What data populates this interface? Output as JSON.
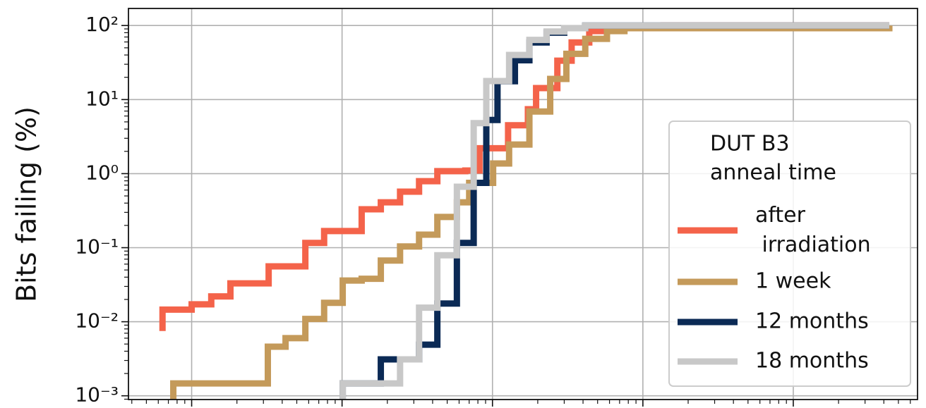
{
  "chart_data": {
    "type": "step",
    "ylabel": "Bits failing (%)",
    "logx": true,
    "logy": true,
    "grid": true,
    "xlim": [
      0.38,
      67000
    ],
    "xticks": [
      1,
      10,
      100,
      1000,
      10000
    ],
    "ylim": [
      0.00089,
      170
    ],
    "yticks": [
      {
        "value": 0.001,
        "label": "10⁻³"
      },
      {
        "value": 0.01,
        "label": "10⁻²"
      },
      {
        "value": 0.1,
        "label": "10⁻¹"
      },
      {
        "value": 1,
        "label": "10⁰"
      },
      {
        "value": 10,
        "label": "10¹"
      },
      {
        "value": 100,
        "label": "10²"
      }
    ],
    "legend_title": [
      "DUT B3",
      "anneal time"
    ],
    "legend_position": "lower right",
    "series": [
      {
        "name": "after irradiation",
        "color": "#f4634a",
        "x": [
          0.64,
          0.64,
          1,
          1.35,
          1.81,
          3.25,
          5.7,
          7.6,
          13.5,
          18.1,
          24.3,
          32.5,
          43,
          66,
          82,
          127,
          172,
          195,
          270,
          336,
          440,
          577,
          1370,
          43500
        ],
        "values": [
          0.0075,
          0.0146,
          0.0172,
          0.022,
          0.033,
          0.056,
          0.116,
          0.168,
          0.33,
          0.41,
          0.57,
          0.79,
          1.08,
          1.1,
          2.2,
          4.5,
          7.4,
          14.3,
          33.5,
          59,
          84,
          92,
          100,
          100
        ]
      },
      {
        "name": "1 week",
        "color": "#c49a5a",
        "x": [
          0.755,
          0.755,
          3.21,
          4.21,
          5.7,
          7.6,
          10.1,
          13.5,
          18.1,
          24.3,
          32.5,
          43,
          58,
          70,
          101,
          129,
          176,
          242,
          310,
          414,
          577,
          754,
          43500
        ],
        "values": [
          0.0009,
          0.00147,
          0.0046,
          0.006,
          0.0109,
          0.018,
          0.036,
          0.038,
          0.067,
          0.104,
          0.15,
          0.26,
          0.41,
          0.75,
          1.37,
          2.47,
          6.9,
          19,
          41.5,
          66,
          84,
          92,
          100
        ]
      },
      {
        "name": "12 months",
        "color": "#0b2a55",
        "x": [
          10.1,
          10.1,
          18.1,
          32.5,
          43,
          58,
          75,
          91,
          108,
          141,
          176,
          229,
          300,
          414,
          43500
        ],
        "values": [
          0.0009,
          0.00147,
          0.0031,
          0.0049,
          0.0176,
          0.116,
          0.75,
          5.3,
          17.7,
          34,
          59,
          80,
          92,
          100,
          100
        ]
      },
      {
        "name": "18 months",
        "color": "#c8c8c8",
        "x": [
          10.1,
          10.1,
          24.3,
          32.5,
          43,
          58,
          75,
          91,
          129,
          176,
          229,
          300,
          414,
          43500
        ],
        "values": [
          0.0009,
          0.00147,
          0.0031,
          0.0155,
          0.079,
          0.665,
          4.8,
          17.8,
          40,
          64,
          83,
          92,
          100,
          100
        ]
      }
    ]
  }
}
